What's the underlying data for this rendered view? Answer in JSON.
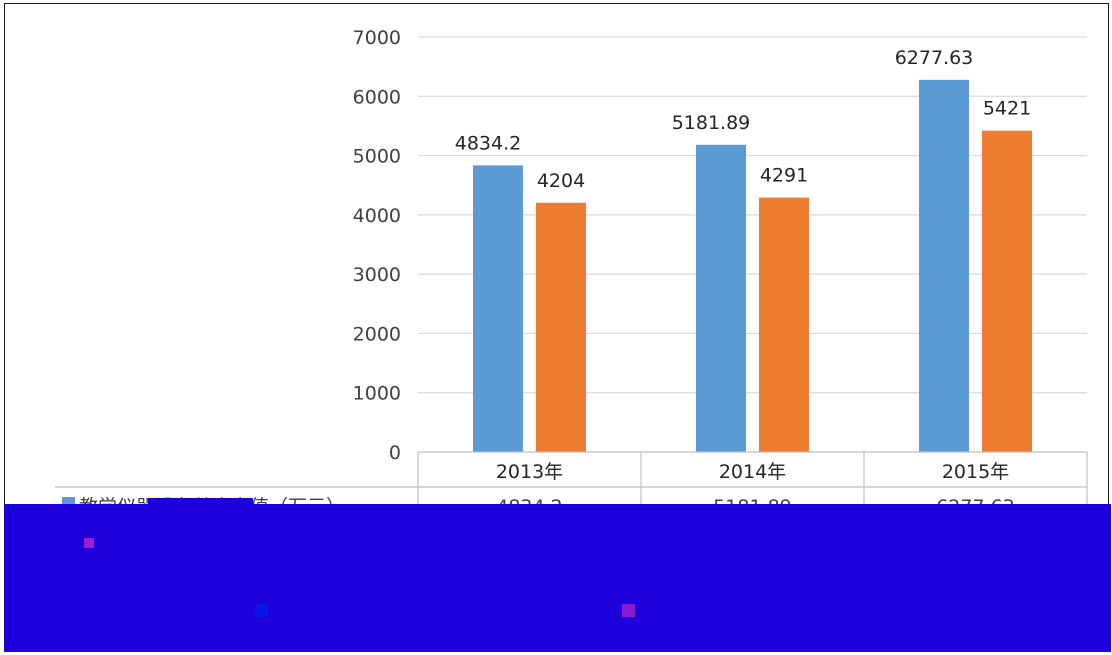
{
  "chart_data": {
    "type": "bar",
    "categories": [
      "2013年",
      "2014年",
      "2015年"
    ],
    "series": [
      {
        "name": "教学仪器设备总资产值（万元）",
        "values": [
          4834.2,
          5181.89,
          6277.63
        ],
        "color": "#5B9BD5"
      },
      {
        "name": "",
        "values": [
          4204,
          4291,
          5421
        ],
        "color": "#ED7D31"
      }
    ],
    "data_labels": [
      [
        "4834.2",
        "5181.89",
        "6277.63"
      ],
      [
        "4204",
        "4291",
        "5421"
      ]
    ],
    "table_values": [
      "4834.2",
      "5181.89",
      "6277.63"
    ],
    "ylim": [
      0,
      7000
    ],
    "yticks": [
      0,
      1000,
      2000,
      3000,
      4000,
      5000,
      6000,
      7000
    ],
    "grid": true,
    "data_table": true,
    "legend": "bottom",
    "redaction_color": "#1E00DC"
  }
}
